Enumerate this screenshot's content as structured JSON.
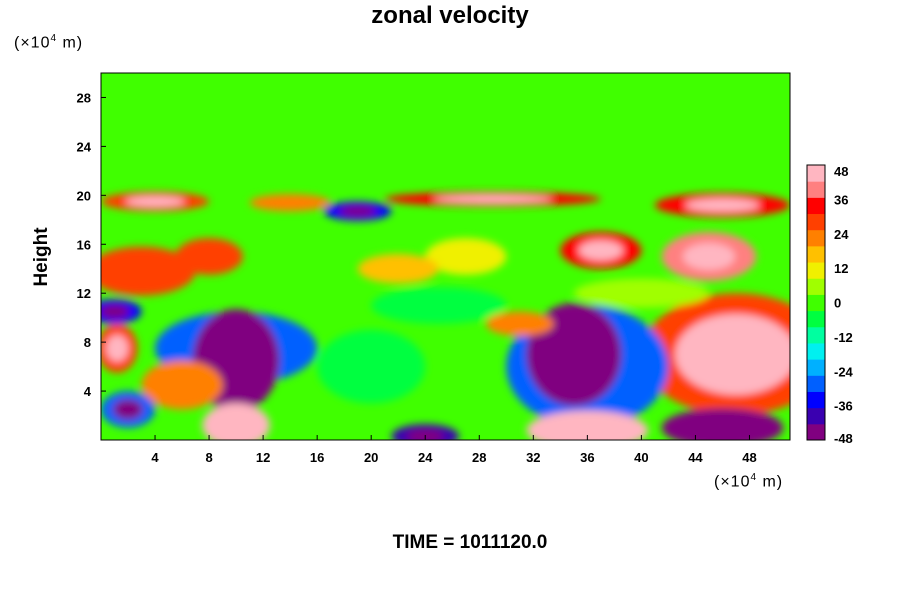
{
  "chart_data": {
    "type": "heatmap",
    "title": "zonal velocity",
    "ylabel": "Height",
    "xlabel": "",
    "x_unit_prefix": "(×10",
    "x_unit_exp": "4",
    "x_unit_suffix": " m)",
    "y_unit_prefix": "(×10",
    "y_unit_exp": "4",
    "y_unit_suffix": " m)",
    "xlim": [
      0,
      51
    ],
    "ylim": [
      0,
      30
    ],
    "xticks": [
      4,
      8,
      12,
      16,
      20,
      24,
      28,
      32,
      36,
      40,
      44,
      48
    ],
    "yticks": [
      4,
      8,
      12,
      16,
      20,
      24,
      28
    ],
    "colorbar": {
      "range": [
        -48,
        48
      ],
      "ticks": [
        48,
        36,
        24,
        12,
        0,
        -12,
        -24,
        -36,
        -48
      ],
      "colors": [
        "#800080",
        "#3a00b0",
        "#0000ff",
        "#0060ff",
        "#00b0ff",
        "#00f0f0",
        "#00ffa0",
        "#00ff40",
        "#40ff00",
        "#a0ff00",
        "#f0f000",
        "#ffc000",
        "#ff8000",
        "#ff4000",
        "#ff0000",
        "#ff8080",
        "#ffb6c1"
      ]
    },
    "background_value": 0,
    "features": [
      {
        "x": 10,
        "y": 6.5,
        "rx": 3.2,
        "ry": 4.2,
        "value": -48
      },
      {
        "x": 10,
        "y": 7.5,
        "rx": 6,
        "ry": 3,
        "value": -26
      },
      {
        "x": 35,
        "y": 7,
        "rx": 3.5,
        "ry": 4.2,
        "value": -46
      },
      {
        "x": 36,
        "y": 6,
        "rx": 6,
        "ry": 5,
        "value": -26
      },
      {
        "x": 46,
        "y": 1,
        "rx": 4.5,
        "ry": 1.6,
        "value": -48
      },
      {
        "x": 24,
        "y": 0.3,
        "rx": 2.5,
        "ry": 1,
        "value": -40
      },
      {
        "x": 1,
        "y": 10.5,
        "rx": 2,
        "ry": 1,
        "value": -36
      },
      {
        "x": 19,
        "y": 18.7,
        "rx": 2.5,
        "ry": 0.8,
        "value": -34
      },
      {
        "x": 47,
        "y": 7,
        "rx": 4.5,
        "ry": 3.3,
        "value": 48
      },
      {
        "x": 47,
        "y": 7,
        "rx": 7,
        "ry": 5,
        "value": 26
      },
      {
        "x": 36,
        "y": 0.8,
        "rx": 4.5,
        "ry": 1.6,
        "value": 48
      },
      {
        "x": 10,
        "y": 1.2,
        "rx": 2.5,
        "ry": 1.8,
        "value": 44
      },
      {
        "x": 45,
        "y": 15,
        "rx": 3.5,
        "ry": 2,
        "value": 40
      },
      {
        "x": 37,
        "y": 15.5,
        "rx": 3,
        "ry": 1.5,
        "value": 36
      },
      {
        "x": 3,
        "y": 13.8,
        "rx": 4,
        "ry": 2,
        "value": 28
      },
      {
        "x": 8,
        "y": 15,
        "rx": 2.5,
        "ry": 1.5,
        "value": 26
      },
      {
        "x": 29,
        "y": 19.7,
        "rx": 8,
        "ry": 0.6,
        "value": 32
      },
      {
        "x": 4,
        "y": 19.5,
        "rx": 4,
        "ry": 0.8,
        "value": 30
      },
      {
        "x": 46,
        "y": 19.2,
        "rx": 5,
        "ry": 1,
        "value": 36
      },
      {
        "x": 14,
        "y": 19.4,
        "rx": 3,
        "ry": 0.7,
        "value": 22
      },
      {
        "x": 6,
        "y": 4.5,
        "rx": 3,
        "ry": 2,
        "value": 24
      },
      {
        "x": 1.2,
        "y": 7.5,
        "rx": 1.5,
        "ry": 2,
        "value": 30
      },
      {
        "x": 31,
        "y": 9.5,
        "rx": 2.5,
        "ry": 1,
        "value": 22
      },
      {
        "x": 22,
        "y": 14,
        "rx": 3,
        "ry": 1.2,
        "value": 16
      },
      {
        "x": 27,
        "y": 15,
        "rx": 3,
        "ry": 1.5,
        "value": 14
      },
      {
        "x": 20,
        "y": 6,
        "rx": 4,
        "ry": 3,
        "value": -6
      },
      {
        "x": 25,
        "y": 11,
        "rx": 5,
        "ry": 1.5,
        "value": -6
      },
      {
        "x": 40,
        "y": 12,
        "rx": 5,
        "ry": 1.2,
        "value": 8
      },
      {
        "x": 2,
        "y": 2.5,
        "rx": 2,
        "ry": 1.5,
        "value": -30
      }
    ]
  }
}
